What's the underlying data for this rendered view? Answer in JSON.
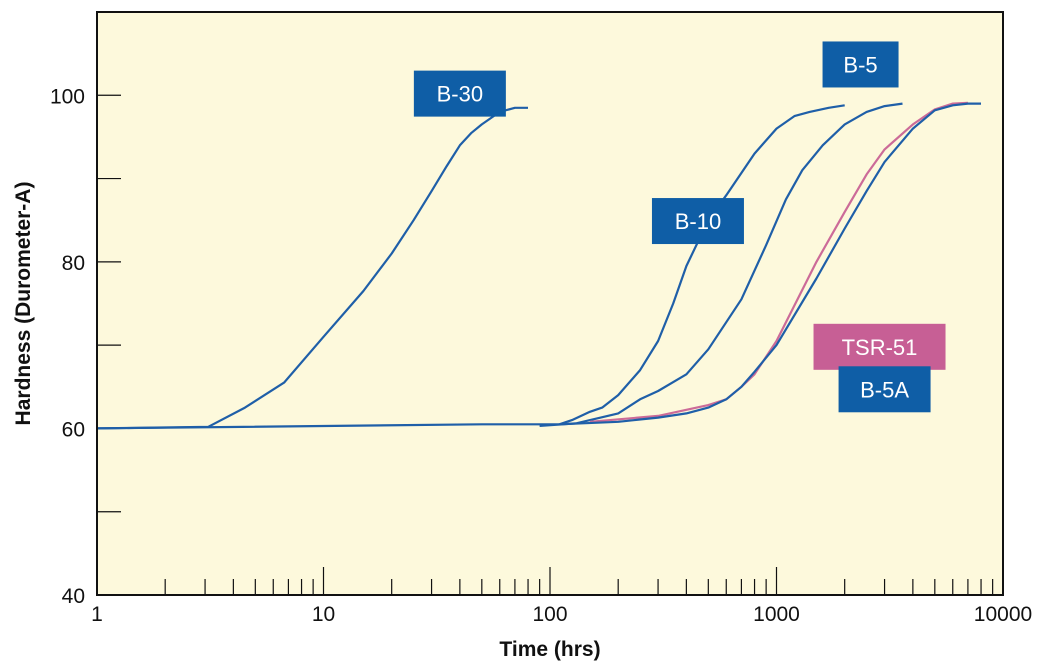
{
  "chart_data": {
    "type": "line",
    "xlabel": "Time (hrs)",
    "ylabel": "Hardness (Durometer-A)",
    "xscale": "log",
    "xlim": [
      1,
      10000
    ],
    "ylim": [
      40,
      110
    ],
    "xticks": [
      1,
      10,
      100,
      1000,
      10000
    ],
    "xtick_labels": [
      "1",
      "10",
      "100",
      "1000",
      "10000"
    ],
    "yticks": [
      40,
      60,
      80,
      100
    ],
    "ytick_labels": [
      "40",
      "60",
      "80",
      "100"
    ],
    "grid": false,
    "plot_background": "#fdf9dc",
    "series": [
      {
        "name": "B-30",
        "color": "#1f5fa8",
        "label_color": "#0f5ea6",
        "x": [
          1,
          3.1,
          4.5,
          6.7,
          10,
          15,
          20,
          25,
          30,
          35,
          40,
          45,
          50,
          60,
          70,
          80
        ],
        "y": [
          60,
          60.2,
          62.5,
          65.5,
          71,
          76.5,
          81,
          85,
          88.5,
          91.5,
          94,
          95.5,
          96.5,
          98,
          98.5,
          98.5
        ]
      },
      {
        "name": "B-10",
        "color": "#1f5fa8",
        "label_color": "#0f5ea6",
        "x": [
          1,
          50,
          110,
          125,
          150,
          170,
          200,
          250,
          300,
          350,
          400,
          500,
          600,
          800,
          1000,
          1200,
          1400,
          1700,
          2000
        ],
        "y": [
          60,
          60.5,
          60.5,
          61,
          62,
          62.5,
          64,
          67,
          70.5,
          75,
          79.5,
          85,
          88,
          93,
          96,
          97.5,
          98,
          98.5,
          98.8
        ]
      },
      {
        "name": "B-5",
        "color": "#1f5fa8",
        "label_color": "#0f5ea6",
        "x": [
          90,
          130,
          200,
          250,
          300,
          400,
          500,
          700,
          900,
          1100,
          1300,
          1600,
          2000,
          2500,
          3000,
          3600
        ],
        "y": [
          60.3,
          60.6,
          61.8,
          63.5,
          64.5,
          66.5,
          69.5,
          75.5,
          82,
          87.5,
          91,
          94,
          96.5,
          98,
          98.7,
          99
        ]
      },
      {
        "name": "TSR-51",
        "color": "#cc6b98",
        "label_color": "#c75f95",
        "x": [
          150,
          300,
          500,
          600,
          700,
          800,
          1000,
          1500,
          2000,
          2500,
          3000,
          4000,
          5000,
          6000,
          7000
        ],
        "y": [
          60.8,
          61.5,
          62.8,
          63.5,
          65,
          66.5,
          70.5,
          80,
          86,
          90.5,
          93.5,
          96.5,
          98.3,
          99,
          99.1
        ]
      },
      {
        "name": "B-5A",
        "color": "#1f5fa8",
        "label_color": "#0f5ea6",
        "x": [
          110,
          200,
          300,
          400,
          500,
          600,
          700,
          800,
          1000,
          1500,
          2000,
          2500,
          3000,
          4000,
          5000,
          6000,
          7000,
          8000
        ],
        "y": [
          60.5,
          60.8,
          61.3,
          61.8,
          62.5,
          63.5,
          65,
          66.8,
          70,
          78,
          84,
          88.5,
          92,
          96,
          98.2,
          98.8,
          99,
          99
        ]
      }
    ]
  }
}
